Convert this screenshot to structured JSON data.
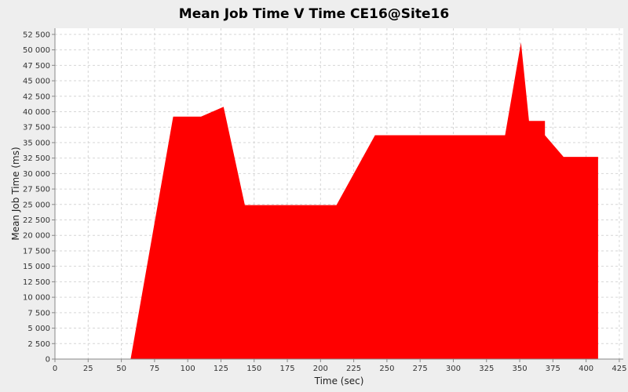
{
  "chart_data": {
    "type": "area",
    "title": "Mean Job Time V Time CE16@Site16",
    "xlabel": "Time (sec)",
    "ylabel": "Mean Job Time (ms)",
    "xlim": [
      0,
      428
    ],
    "ylim": [
      0,
      53500
    ],
    "x_ticks": [
      0,
      25,
      50,
      75,
      100,
      125,
      150,
      175,
      200,
      225,
      250,
      275,
      300,
      325,
      350,
      375,
      400,
      425
    ],
    "x_tick_labels": [
      "0",
      "25",
      "50",
      "75",
      "100",
      "125",
      "150",
      "175",
      "200",
      "225",
      "250",
      "275",
      "300",
      "325",
      "350",
      "375",
      "400",
      "425"
    ],
    "y_ticks": [
      0,
      2500,
      5000,
      7500,
      10000,
      12500,
      15000,
      17500,
      20000,
      22500,
      25000,
      27500,
      30000,
      32500,
      35000,
      37500,
      40000,
      42500,
      45000,
      47500,
      50000,
      52500
    ],
    "y_tick_labels": [
      "0",
      "2 500",
      "5 000",
      "7 500",
      "10 000",
      "12 500",
      "15 000",
      "17 500",
      "20 000",
      "22 500",
      "25 000",
      "27 500",
      "30 000",
      "32 500",
      "35 000",
      "37 500",
      "40 000",
      "42 500",
      "45 000",
      "47 500",
      "50 000",
      "52 500"
    ],
    "grid": true,
    "color": "#ff0000",
    "series": [
      {
        "x": [
          57,
          89,
          110,
          127,
          143,
          212,
          241,
          339,
          351,
          357,
          369,
          369,
          383,
          409,
          409
        ],
        "y": [
          0,
          39200,
          39200,
          40800,
          24900,
          24900,
          36200,
          36200,
          51200,
          38500,
          38500,
          36200,
          32700,
          32700,
          0
        ]
      }
    ]
  }
}
